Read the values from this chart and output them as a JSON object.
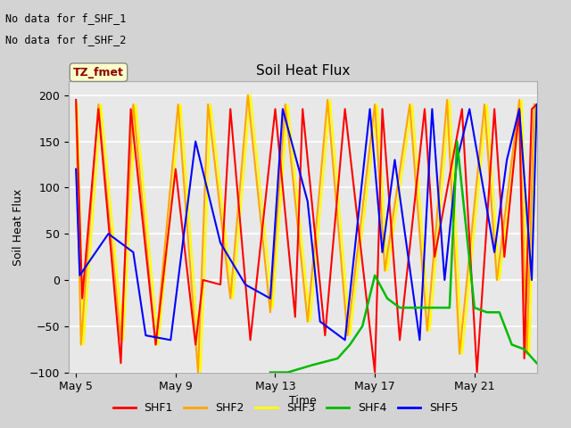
{
  "title": "Soil Heat Flux",
  "ylabel": "Soil Heat Flux",
  "xlabel": "Time",
  "ylim": [
    -100,
    215
  ],
  "yticks": [
    -100,
    -50,
    0,
    50,
    100,
    150,
    200
  ],
  "annotations": [
    "No data for f_SHF_1",
    "No data for f_SHF_2"
  ],
  "legend_labels": [
    "SHF1",
    "SHF2",
    "SHF3",
    "SHF4",
    "SHF5"
  ],
  "legend_colors": [
    "#ff0000",
    "#ffa500",
    "#ffff00",
    "#00bb00",
    "#0000ff"
  ],
  "tz_label": "TZ_fmet",
  "bg_color": "#d3d3d3",
  "plot_bg_color": "#e8e8e8",
  "x_tick_labels": [
    "May 5",
    "May 9",
    "May 13",
    "May 17",
    "May 21"
  ],
  "x_tick_pos": [
    0,
    4,
    8,
    12,
    16
  ],
  "xlim": [
    -0.3,
    18.5
  ],
  "shf1_x": [
    0.0,
    0.25,
    0.9,
    1.8,
    2.2,
    3.2,
    4.0,
    4.8,
    5.1,
    5.8,
    6.2,
    7.0,
    8.0,
    8.8,
    9.1,
    10.0,
    10.8,
    12.0,
    12.3,
    13.0,
    14.0,
    14.4,
    15.5,
    16.1,
    16.8,
    17.2,
    17.8,
    18.0,
    18.3,
    18.5
  ],
  "shf1_y": [
    195,
    -20,
    185,
    -90,
    185,
    -70,
    120,
    -70,
    0,
    -5,
    185,
    -65,
    185,
    -40,
    185,
    -60,
    185,
    -100,
    185,
    -65,
    185,
    25,
    185,
    -100,
    185,
    25,
    185,
    -85,
    185,
    190
  ],
  "shf2_x": [
    0.0,
    0.2,
    0.9,
    1.8,
    2.3,
    3.2,
    4.1,
    4.9,
    5.3,
    6.2,
    6.9,
    7.8,
    8.4,
    9.3,
    10.1,
    10.9,
    12.0,
    12.4,
    13.4,
    14.1,
    14.9,
    15.4,
    16.4,
    16.9,
    17.8,
    18.1,
    18.4
  ],
  "shf2_y": [
    190,
    -70,
    190,
    -65,
    190,
    -70,
    190,
    -100,
    190,
    -20,
    200,
    -35,
    190,
    -45,
    195,
    -60,
    190,
    10,
    190,
    -55,
    195,
    -80,
    190,
    0,
    195,
    -80,
    190
  ],
  "shf3_x": [
    0.05,
    0.3,
    1.0,
    1.9,
    2.4,
    3.3,
    4.2,
    5.0,
    5.4,
    6.3,
    7.0,
    7.9,
    8.5,
    9.4,
    10.2,
    11.0,
    12.1,
    12.5,
    13.5,
    14.2,
    15.0,
    15.5,
    16.5,
    17.0,
    17.9,
    18.2,
    18.45
  ],
  "shf3_y": [
    190,
    -70,
    190,
    -65,
    190,
    -70,
    190,
    -100,
    190,
    -20,
    200,
    -30,
    190,
    -45,
    195,
    -60,
    190,
    10,
    190,
    -55,
    195,
    -80,
    190,
    0,
    195,
    -80,
    190
  ],
  "shf4_x": [
    7.8,
    8.5,
    9.5,
    10.5,
    11.0,
    11.5,
    12.0,
    12.5,
    13.0,
    13.5,
    14.0,
    15.0,
    15.3,
    16.0,
    16.5,
    17.0,
    17.5,
    18.0,
    18.5
  ],
  "shf4_y": [
    -100,
    -100,
    -92,
    -85,
    -70,
    -50,
    5,
    -20,
    -30,
    -30,
    -30,
    -30,
    150,
    -30,
    -35,
    -35,
    -70,
    -75,
    -90
  ],
  "shf5_x": [
    0.0,
    0.15,
    1.3,
    2.3,
    2.8,
    3.8,
    4.8,
    5.8,
    6.8,
    7.8,
    8.3,
    9.3,
    9.8,
    10.8,
    11.8,
    12.3,
    12.8,
    13.8,
    14.3,
    14.8,
    15.3,
    15.8,
    16.8,
    17.3,
    17.8,
    18.3,
    18.5
  ],
  "shf5_y": [
    120,
    5,
    50,
    30,
    -60,
    -65,
    150,
    40,
    -5,
    -20,
    185,
    85,
    -45,
    -65,
    185,
    30,
    130,
    -65,
    185,
    0,
    130,
    185,
    30,
    130,
    185,
    0,
    190
  ]
}
